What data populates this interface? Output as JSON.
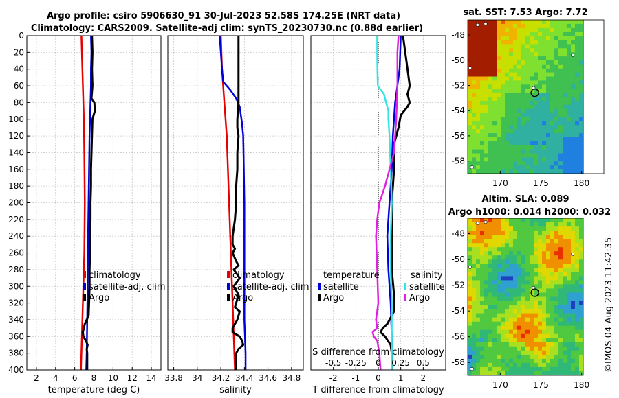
{
  "title": {
    "line1": "Argo profile: csiro 5906630_91 30-Jul-2023 52.58S 174.25E (NRT data)",
    "line2": "Climatology: CARS2009. Satellite-adj clim: synTS_20230730.nc (0.88d earlier)"
  },
  "watermark": "©IMOS 04-Aug-2023 11:42:35",
  "colors": {
    "climatology": "#e60000",
    "satellite_adj": "#0000d8",
    "argo": "#000000",
    "salinity_sat": "#33e5e5",
    "salinity_argo": "#e020e0",
    "grid": "#c8c8c8"
  },
  "chart_data": [
    {
      "type": "line",
      "id": "temperature",
      "xlabel": "temperature (deg C)",
      "ylabel": "",
      "xlim": [
        1,
        15
      ],
      "ylim": [
        400,
        0
      ],
      "xticks": [
        2,
        4,
        6,
        8,
        10,
        12,
        14
      ],
      "yticks": [
        0,
        20,
        40,
        60,
        80,
        100,
        120,
        140,
        160,
        180,
        200,
        220,
        240,
        260,
        280,
        300,
        320,
        340,
        360,
        380,
        400
      ],
      "legend": [
        "climatology",
        "satellite-adj. clim",
        "Argo"
      ],
      "series": [
        {
          "name": "climatology",
          "color": "#e60000",
          "depth": [
            0,
            20,
            40,
            60,
            80,
            100,
            140,
            200,
            260,
            300,
            340,
            380,
            400
          ],
          "values": [
            6.7,
            6.75,
            6.8,
            6.85,
            6.9,
            6.95,
            7.0,
            7.05,
            7.0,
            6.9,
            6.8,
            6.7,
            6.65
          ]
        },
        {
          "name": "satellite-adj. clim",
          "color": "#0000d8",
          "depth": [
            0,
            20,
            40,
            60,
            80,
            100,
            120,
            160,
            200,
            240,
            300,
            340,
            380,
            400
          ],
          "values": [
            7.7,
            7.75,
            7.7,
            7.7,
            7.65,
            7.6,
            7.55,
            7.5,
            7.45,
            7.4,
            7.35,
            7.3,
            7.25,
            7.2
          ]
        },
        {
          "name": "Argo",
          "color": "#000000",
          "depth": [
            0,
            20,
            40,
            60,
            75,
            80,
            90,
            100,
            120,
            140,
            160,
            180,
            200,
            220,
            240,
            260,
            280,
            300,
            320,
            335,
            345,
            350,
            355,
            360,
            365,
            370,
            375,
            380,
            390,
            400
          ],
          "values": [
            7.8,
            7.85,
            7.8,
            7.85,
            7.75,
            8.05,
            8.1,
            7.85,
            7.8,
            7.75,
            7.7,
            7.7,
            7.65,
            7.65,
            7.6,
            7.6,
            7.55,
            7.55,
            7.5,
            7.45,
            7.05,
            6.95,
            6.85,
            6.9,
            7.15,
            7.35,
            7.25,
            7.3,
            7.3,
            7.3
          ]
        }
      ]
    },
    {
      "type": "line",
      "id": "salinity",
      "xlabel": "salinity",
      "xlim": [
        33.75,
        34.9
      ],
      "ylim": [
        400,
        0
      ],
      "xticks": [
        33.8,
        34,
        34.2,
        34.4,
        34.6,
        34.8
      ],
      "legend": [
        "climatology",
        "satellite-adj. clim",
        "Argo"
      ],
      "series": [
        {
          "name": "climatology",
          "color": "#e60000",
          "depth": [
            0,
            40,
            80,
            120,
            160,
            200,
            240,
            280,
            320,
            360,
            400
          ],
          "values": [
            34.2,
            34.21,
            34.23,
            34.25,
            34.26,
            34.27,
            34.28,
            34.29,
            34.3,
            34.31,
            34.32
          ]
        },
        {
          "name": "satellite-adj. clim",
          "color": "#0000d8",
          "depth": [
            0,
            20,
            40,
            55,
            65,
            75,
            85,
            95,
            105,
            120,
            160,
            200,
            240,
            280,
            300,
            340,
            380,
            400
          ],
          "values": [
            34.19,
            34.2,
            34.21,
            34.22,
            34.28,
            34.33,
            34.36,
            34.37,
            34.38,
            34.39,
            34.395,
            34.4,
            34.4,
            34.4,
            34.4,
            34.4,
            34.41,
            34.41
          ]
        },
        {
          "name": "Argo",
          "color": "#000000",
          "depth": [
            0,
            40,
            80,
            100,
            110,
            120,
            140,
            160,
            180,
            200,
            220,
            240,
            250,
            255,
            260,
            270,
            275,
            280,
            290,
            300,
            310,
            315,
            325,
            330,
            340,
            350,
            355,
            360,
            365,
            370,
            375,
            380,
            390,
            400
          ],
          "values": [
            34.35,
            34.35,
            34.35,
            34.34,
            34.34,
            34.35,
            34.34,
            34.34,
            34.33,
            34.33,
            34.32,
            34.3,
            34.3,
            34.32,
            34.3,
            34.33,
            34.35,
            34.31,
            34.36,
            34.31,
            34.35,
            34.34,
            34.32,
            34.36,
            34.34,
            34.3,
            34.3,
            34.36,
            34.38,
            34.39,
            34.35,
            34.33,
            34.33,
            34.33
          ]
        }
      ]
    },
    {
      "type": "line",
      "id": "difference",
      "xlabel": "T difference from climatology",
      "xlabel_top": "S difference from climatology",
      "xlim": [
        -3,
        3
      ],
      "ylim": [
        400,
        0
      ],
      "xticks": [
        -2,
        -1,
        0,
        1,
        2
      ],
      "xticks_s": [
        "-0.5",
        "-0.25",
        "0",
        "0.25",
        "0.5"
      ],
      "legend_temperature": {
        "title": "temperature",
        "items": [
          "satellite",
          "Argo"
        ]
      },
      "legend_salinity": {
        "title": "salinity",
        "items": [
          "satellite",
          "Argo"
        ]
      },
      "series": [
        {
          "name": "T satellite",
          "color": "#0000d8",
          "depth": [
            0,
            40,
            80,
            120,
            160,
            200,
            240,
            280,
            320,
            360,
            400
          ],
          "values": [
            1.0,
            0.95,
            0.75,
            0.65,
            0.6,
            0.5,
            0.4,
            0.45,
            0.55,
            0.6,
            0.6
          ]
        },
        {
          "name": "T Argo",
          "color": "#000000",
          "depth": [
            0,
            20,
            40,
            60,
            70,
            80,
            85,
            95,
            110,
            130,
            160,
            200,
            240,
            280,
            310,
            330,
            345,
            350,
            355,
            360,
            370,
            380,
            400
          ],
          "values": [
            1.1,
            1.2,
            1.3,
            1.4,
            1.3,
            1.4,
            1.3,
            1.0,
            0.9,
            0.7,
            0.7,
            0.6,
            0.6,
            0.6,
            0.7,
            0.7,
            0.4,
            0.2,
            0.1,
            0.3,
            0.55,
            0.6,
            0.6
          ]
        },
        {
          "name": "S satellite",
          "color": "#33e5e5",
          "depth": [
            0,
            20,
            40,
            60,
            70,
            80,
            90,
            100,
            120,
            160,
            200,
            240,
            280,
            320,
            360,
            400
          ],
          "values": [
            -0.05,
            -0.05,
            -0.04,
            -0.02,
            0.25,
            0.35,
            0.45,
            0.45,
            0.5,
            0.55,
            0.6,
            0.55,
            0.55,
            0.6,
            0.6,
            0.6
          ]
        },
        {
          "name": "S Argo",
          "color": "#e020e0",
          "depth": [
            0,
            20,
            60,
            100,
            140,
            180,
            200,
            220,
            240,
            280,
            320,
            340,
            350,
            355,
            360,
            365,
            380,
            400
          ],
          "values": [
            0.9,
            0.85,
            0.85,
            0.8,
            0.7,
            0.3,
            0.05,
            -0.05,
            -0.1,
            -0.05,
            0.0,
            -0.1,
            -0.05,
            -0.25,
            -0.2,
            -0.05,
            0.05,
            0.1
          ]
        }
      ]
    },
    {
      "type": "heatmap",
      "id": "sst-map",
      "title": "sat. SST: 7.53 Argo: 7.72",
      "xticks": [
        170,
        175,
        180
      ],
      "yticks": [
        -48,
        -50,
        -52,
        -54,
        -56,
        -58
      ],
      "xlim": [
        166,
        180.2
      ],
      "ylim": [
        -59,
        -46.8
      ],
      "marker": {
        "lon": 174.25,
        "lat": -52.58
      }
    },
    {
      "type": "heatmap",
      "id": "sla-map",
      "title_line1": "Altim. SLA: 0.089",
      "title_line2": "Argo h1000: 0.014 h2000: 0.032",
      "xticks": [
        170,
        175,
        180
      ],
      "yticks": [
        -48,
        -50,
        -52,
        -54,
        -56,
        -58
      ],
      "xlim": [
        166,
        180.2
      ],
      "ylim": [
        -59,
        -46.8
      ],
      "marker": {
        "lon": 174.25,
        "lat": -52.58
      }
    }
  ]
}
